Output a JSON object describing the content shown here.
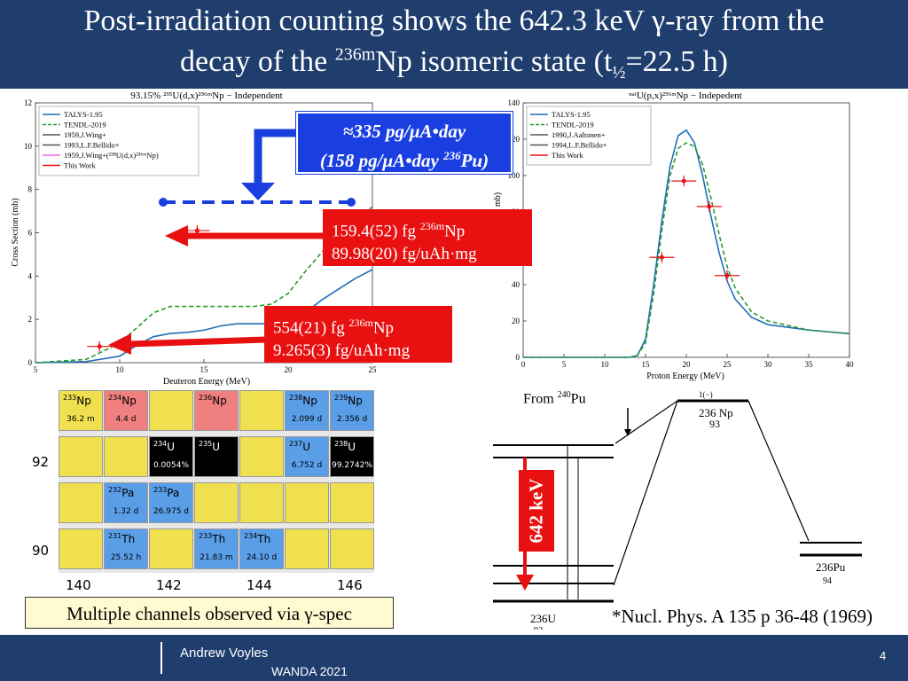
{
  "title": {
    "line1": "Post-irradiation counting shows the 642.3 keV γ-ray from the",
    "line2_pre": "decay of the ",
    "line2_mass": "236m",
    "line2_mid": "Np isomeric state (t",
    "line2_sub": "½",
    "line2_post": "=22.5 h)"
  },
  "callouts": {
    "blue_line1": "≈335 pg/μA•day",
    "blue_line2_pre": "(158 pg/μA•day ",
    "blue_line2_mass": "236",
    "blue_line2_post": "Pu)",
    "red1_val": "159.4(52) fg ",
    "red1_mass": "236m",
    "red1_sym": "Np",
    "red1_line2": "89.98(20)   fg/uAh·mg",
    "red2_val": "554(21) fg ",
    "red2_mass": "236m",
    "red2_sym": "Np",
    "red2_line2": "9.265(3)  fg/uAh·mg"
  },
  "left_plot": {
    "title": "93.15% ²³⁵U(d,x)²³⁶ᵐNp − Independent",
    "xlabel": "Deuteron Energy (MeV)",
    "ylabel": "Cross Section (mb)",
    "legend": [
      "TALYS-1.95",
      "TENDL-2019",
      "1959,J.Wing+",
      "1993,L.F.Bellido+",
      "1959,J.Wing+(²³⁸U(d,x)²³⁶ᵐNp)",
      "This Work"
    ],
    "xticks": [
      "5",
      "10",
      "15",
      "20",
      "25"
    ],
    "yticks": [
      "0",
      "2",
      "4",
      "6",
      "8",
      "10",
      "12"
    ]
  },
  "right_plot": {
    "title": "ⁿᵃᵗU(p,x)²³⁶ᵐNp − Indepedent",
    "xlabel": "Proton Energy (MeV)",
    "ylabel": "mb)",
    "legend": [
      "TALYS-1.95",
      "TENDL-2019",
      "1990,J.Aaltonen+",
      "1994,L.F.Bellido+",
      "This Work"
    ],
    "xticks": [
      "0",
      "5",
      "10",
      "15",
      "20",
      "25",
      "30",
      "35",
      "40"
    ],
    "yticks": [
      "0",
      "20",
      "40",
      "60",
      "80",
      "100",
      "120",
      "140"
    ]
  },
  "chart_data": [
    {
      "type": "line",
      "title": "93.15% 235U(d,x)236mNp − Independent",
      "xlabel": "Deuteron Energy (MeV)",
      "ylabel": "Cross Section (mb)",
      "xlim": [
        5,
        25
      ],
      "ylim": [
        0,
        12
      ],
      "series": [
        {
          "name": "TALYS-1.95",
          "x": [
            5,
            8,
            10,
            11,
            12,
            13,
            14,
            15,
            16,
            17,
            18,
            19,
            20,
            21,
            22,
            23,
            24,
            25
          ],
          "y": [
            0,
            0.05,
            0.3,
            0.8,
            1.2,
            1.35,
            1.4,
            1.5,
            1.7,
            1.8,
            1.8,
            1.8,
            1.9,
            2.3,
            2.9,
            3.4,
            3.9,
            4.3
          ]
        },
        {
          "name": "TENDL-2019",
          "x": [
            5,
            8,
            10,
            11,
            12,
            13,
            14,
            15,
            16,
            17,
            18,
            19,
            20,
            21,
            22,
            23,
            24,
            25
          ],
          "y": [
            0,
            0.15,
            0.9,
            1.6,
            2.3,
            2.6,
            2.6,
            2.6,
            2.6,
            2.6,
            2.6,
            2.7,
            3.2,
            4.2,
            5.1,
            5.9,
            6.6,
            7.2
          ]
        },
        {
          "name": "This Work",
          "x": [
            8.8,
            14.6
          ],
          "y": [
            0.75,
            6.1
          ]
        }
      ]
    },
    {
      "type": "line",
      "title": "natU(p,x)236mNp − Indepedent",
      "xlabel": "Proton Energy (MeV)",
      "ylabel": "mb)",
      "xlim": [
        0,
        40
      ],
      "ylim": [
        0,
        140
      ],
      "series": [
        {
          "name": "TALYS-1.95",
          "x": [
            0,
            13,
            14,
            15,
            16,
            17,
            18,
            19,
            20,
            21,
            22,
            23,
            24,
            25,
            26,
            28,
            30,
            35,
            40
          ],
          "y": [
            0,
            0,
            1,
            10,
            40,
            75,
            105,
            122,
            125,
            118,
            100,
            78,
            58,
            42,
            32,
            22,
            18,
            15,
            13
          ]
        },
        {
          "name": "TENDL-2019",
          "x": [
            0,
            13,
            14,
            15,
            16,
            17,
            18,
            19,
            20,
            21,
            22,
            23,
            24,
            25,
            26,
            28,
            30,
            35,
            40
          ],
          "y": [
            0,
            0,
            1,
            8,
            35,
            70,
            100,
            115,
            118,
            116,
            106,
            88,
            68,
            50,
            38,
            25,
            20,
            15,
            13
          ]
        },
        {
          "name": "This Work",
          "x": [
            17,
            19.7,
            22.8,
            25
          ],
          "y": [
            55,
            97,
            83,
            45
          ]
        }
      ]
    }
  ],
  "chart_of_nuclides": {
    "xaxis": [
      "140",
      "142",
      "144",
      "146"
    ],
    "yaxis": [
      "92",
      "90"
    ],
    "cells": [
      {
        "sym": "Np",
        "mass": "233",
        "hl": "36.2 m",
        "col": 0,
        "row": 0,
        "color": "#f0e050"
      },
      {
        "sym": "Np",
        "mass": "234",
        "hl": "4.4 d",
        "col": 1,
        "row": 0,
        "color": "#f08080"
      },
      {
        "sym": "Np",
        "mass": "236",
        "hl": "",
        "col": 3,
        "row": 0,
        "color": "#f08080"
      },
      {
        "sym": "Np",
        "mass": "238",
        "hl": "2.099 d",
        "col": 5,
        "row": 0,
        "color": "#5a9ee8"
      },
      {
        "sym": "Np",
        "mass": "239",
        "hl": "2.356 d",
        "col": 6,
        "row": 0,
        "color": "#5a9ee8"
      },
      {
        "sym": "U",
        "mass": "234",
        "hl": "0.0054%",
        "col": 2,
        "row": 1,
        "color": "#000000"
      },
      {
        "sym": "U",
        "mass": "235",
        "hl": "",
        "col": 3,
        "row": 1,
        "color": "#000000"
      },
      {
        "sym": "U",
        "mass": "237",
        "hl": "6.752 d",
        "col": 5,
        "row": 1,
        "color": "#5a9ee8"
      },
      {
        "sym": "U",
        "mass": "238",
        "hl": "99.2742%",
        "col": 6,
        "row": 1,
        "color": "#000000"
      },
      {
        "sym": "Pa",
        "mass": "232",
        "hl": "1.32 d",
        "col": 1,
        "row": 2,
        "color": "#5a9ee8"
      },
      {
        "sym": "Pa",
        "mass": "233",
        "hl": "26.975 d",
        "col": 2,
        "row": 2,
        "color": "#5a9ee8"
      },
      {
        "sym": "Th",
        "mass": "231",
        "hl": "25.52 h",
        "col": 1,
        "row": 3,
        "color": "#5a9ee8"
      },
      {
        "sym": "Th",
        "mass": "233",
        "hl": "21.83 m",
        "col": 3,
        "row": 3,
        "color": "#5a9ee8"
      },
      {
        "sym": "Th",
        "mass": "234",
        "hl": "24.10 d",
        "col": 4,
        "row": 3,
        "color": "#5a9ee8"
      }
    ]
  },
  "decay_scheme": {
    "from_pre": "From ",
    "from_mass": "240",
    "from_sym": "Pu",
    "kev": "642 keV",
    "np_mass": "236",
    "np_sym": "Np",
    "np_z": "93",
    "pu_mass": "236",
    "pu_sym": "Pu",
    "pu_z": "94",
    "u_mass": "236",
    "u_sym": "U",
    "u_z": "92",
    "top_spin": "1(−)"
  },
  "chip": "Multiple channels observed via γ-spec",
  "reference": "*Nucl. Phys. A 135 p 36-48 (1969)",
  "footer": {
    "author": "Andrew Voyles",
    "conference": "WANDA 2021",
    "page": "4"
  }
}
